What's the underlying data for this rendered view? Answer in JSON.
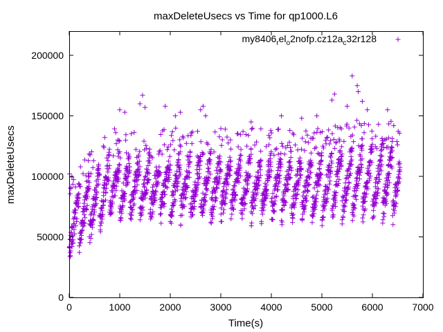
{
  "chart_data": {
    "type": "scatter",
    "title": "maxDeleteUsecs vs Time for qp1000.L6",
    "xlabel": "Time(s)",
    "ylabel": "maxDeleteUsecs",
    "xlim": [
      0,
      7000
    ],
    "ylim": [
      0,
      220000
    ],
    "xticks": [
      0,
      1000,
      2000,
      3000,
      4000,
      5000,
      6000,
      7000
    ],
    "yticks": [
      0,
      50000,
      100000,
      150000,
      200000
    ],
    "grid": false,
    "legend_position": "top-right",
    "series": [
      {
        "name_parts": [
          {
            "text": "my8406",
            "sub": false
          },
          {
            "text": "r",
            "sub": true
          },
          {
            "text": "el",
            "sub": false
          },
          {
            "text": "o",
            "sub": true
          },
          {
            "text": "2nofp.cz12a",
            "sub": false
          },
          {
            "text": "c",
            "sub": true
          },
          {
            "text": "32r128",
            "sub": false
          }
        ],
        "color": "#9400d3",
        "marker": "plus",
        "x_range": [
          0,
          6540
        ],
        "sample_interval_s": 10,
        "band_period_s": 200,
        "band_low_typical": 70000,
        "band_high_typical": 115000,
        "startup_low": 38000,
        "outlier_points": [
          {
            "x": 1000,
            "y": 155000
          },
          {
            "x": 1100,
            "y": 153000
          },
          {
            "x": 1400,
            "y": 160000
          },
          {
            "x": 1450,
            "y": 167000
          },
          {
            "x": 1500,
            "y": 157000
          },
          {
            "x": 1900,
            "y": 158000
          },
          {
            "x": 2100,
            "y": 150000
          },
          {
            "x": 2200,
            "y": 153000
          },
          {
            "x": 2600,
            "y": 155000
          },
          {
            "x": 2650,
            "y": 158000
          },
          {
            "x": 2700,
            "y": 150000
          },
          {
            "x": 3600,
            "y": 145000
          },
          {
            "x": 4200,
            "y": 150000
          },
          {
            "x": 4600,
            "y": 148000
          },
          {
            "x": 4900,
            "y": 150000
          },
          {
            "x": 5200,
            "y": 163000
          },
          {
            "x": 5250,
            "y": 168000
          },
          {
            "x": 5500,
            "y": 158000
          },
          {
            "x": 5600,
            "y": 183000
          },
          {
            "x": 5700,
            "y": 175000
          },
          {
            "x": 5720,
            "y": 170000
          },
          {
            "x": 5800,
            "y": 162000
          },
          {
            "x": 5900,
            "y": 155000
          },
          {
            "x": 6300,
            "y": 155000
          }
        ]
      }
    ]
  }
}
